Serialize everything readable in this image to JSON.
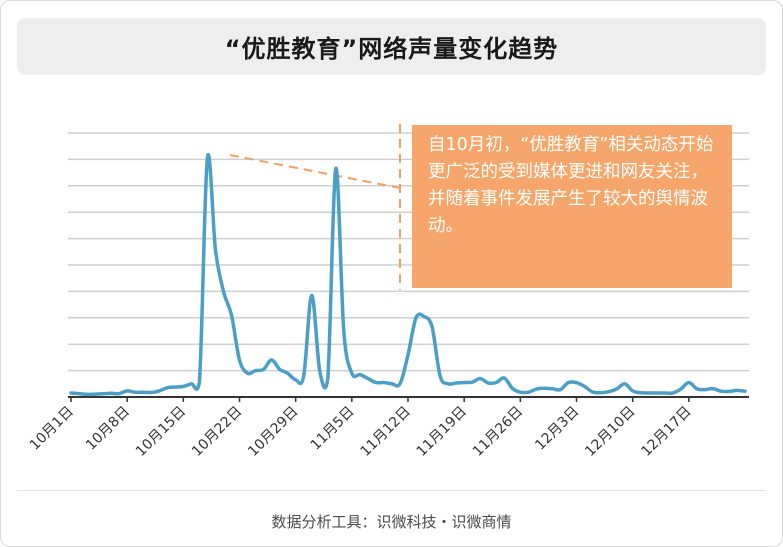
{
  "title": "“优胜教育”网络声量变化趋势",
  "annotation": "自10月初，“优胜教育”相关动态开始更广泛的受到媒体更进和网友关注，并随着事件发展产生了较大的舆情波动。",
  "source": "数据分析工具：识微科技・识微商情",
  "colors": {
    "line": "#4b9fc6",
    "callout_bg": "#f6a66a",
    "dashed": "#f0a060",
    "grid": "#cfcfcf",
    "axis": "#333333"
  },
  "chart_data": {
    "type": "line",
    "title": "“优胜教育”网络声量变化趋势",
    "xlabel": "",
    "ylabel": "",
    "ylim": [
      0,
      100
    ],
    "grid": true,
    "y_tick_labels_shown": false,
    "categories": [
      "10月1日",
      "10月8日",
      "10月15日",
      "10月22日",
      "10月29日",
      "11月5日",
      "11月12日",
      "11月19日",
      "11月26日",
      "12月3日",
      "12月10日",
      "12月17日"
    ],
    "x": [
      "10月1日",
      "10月2日",
      "10月3日",
      "10月4日",
      "10月5日",
      "10月6日",
      "10月7日",
      "10月8日",
      "10月9日",
      "10月10日",
      "10月11日",
      "10月12日",
      "10月13日",
      "10月14日",
      "10月15日",
      "10月16日",
      "10月17日",
      "10月18日",
      "10月19日",
      "10月20日",
      "10月21日",
      "10月22日",
      "10月23日",
      "10月24日",
      "10月25日",
      "10月26日",
      "10月27日",
      "10月28日",
      "10月29日",
      "10月30日",
      "10月31日",
      "11月1日",
      "11月2日",
      "11月3日",
      "11月4日",
      "11月5日",
      "11月6日",
      "11月7日",
      "11月8日",
      "11月9日",
      "11月10日",
      "11月11日",
      "11月12日",
      "11月13日",
      "11月14日",
      "11月15日",
      "11月16日",
      "11月17日",
      "11月18日",
      "11月19日",
      "11月20日",
      "11月21日",
      "11月22日",
      "11月23日",
      "11月24日",
      "11月25日",
      "11月26日",
      "11月27日",
      "11月28日",
      "11月29日",
      "11月30日",
      "12月1日",
      "12月2日",
      "12月3日",
      "12月4日",
      "12月5日",
      "12月6日",
      "12月7日",
      "12月8日",
      "12月9日",
      "12月10日",
      "12月11日",
      "12月12日",
      "12月13日",
      "12月14日",
      "12月15日",
      "12月16日",
      "12月17日",
      "12月18日",
      "12月19日",
      "12月20日",
      "12月21日",
      "12月22日",
      "12月23日",
      "12月24日"
    ],
    "series": [
      {
        "values": [
          1.5,
          1.3,
          1,
          1.1,
          1.2,
          1.4,
          1.3,
          2.3,
          1.8,
          1.8,
          1.7,
          2.3,
          3.5,
          3.8,
          4,
          5,
          5.5,
          90.5,
          56,
          40,
          31,
          14,
          9,
          10,
          10.5,
          14,
          10.5,
          9,
          6.5,
          8,
          38.5,
          10,
          7,
          86.5,
          25,
          9,
          8.5,
          7,
          5.5,
          5.5,
          5,
          5,
          16,
          30,
          30.5,
          26.5,
          8,
          5,
          5.3,
          5.5,
          5.6,
          7,
          5.3,
          5.5,
          7.2,
          3.3,
          1.8,
          1.8,
          3,
          3.3,
          3.1,
          2.8,
          5.5,
          5.4,
          4,
          1.9,
          1.6,
          2,
          3,
          5,
          2.3,
          1.6,
          1.5,
          1.5,
          1.5,
          1.5,
          3,
          5.5,
          3.1,
          2.8,
          3.2,
          2.2,
          2.1,
          2.5,
          2.2
        ]
      }
    ]
  }
}
